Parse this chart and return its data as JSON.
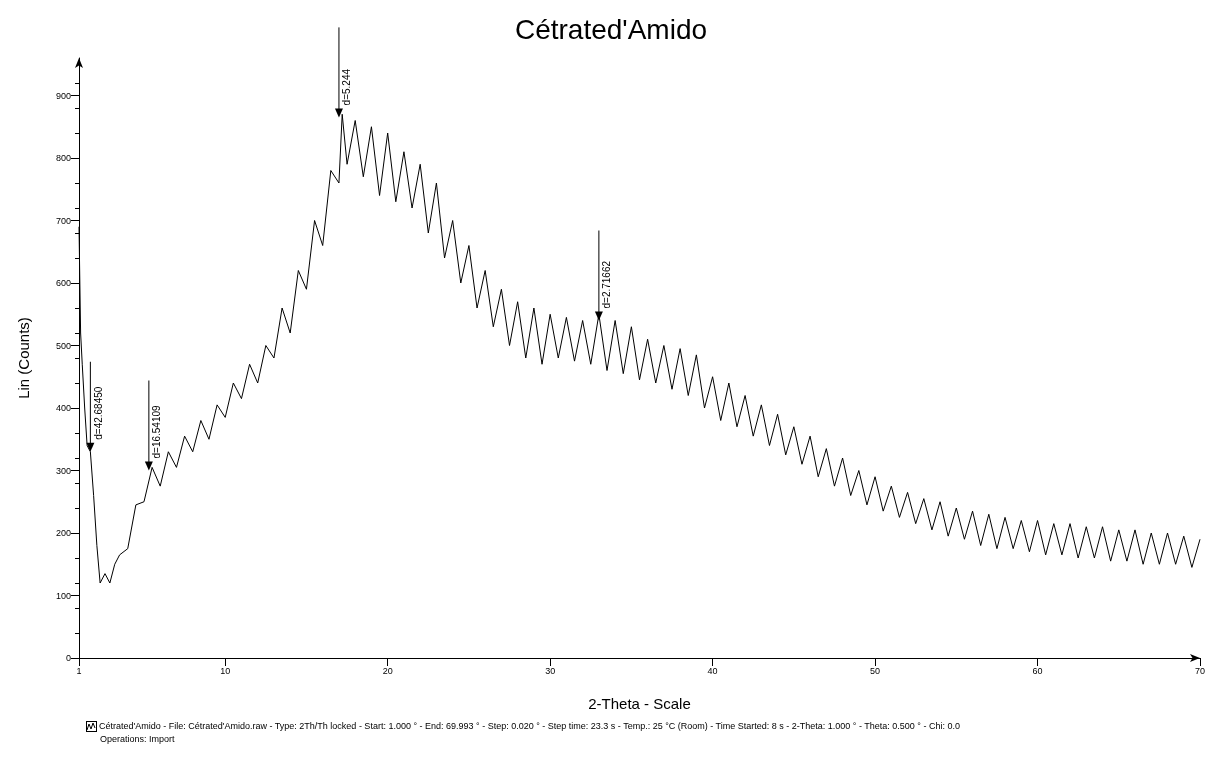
{
  "chart_data": {
    "type": "line",
    "title": "Cétrated'Amido",
    "xlabel": "2-Theta - Scale",
    "ylabel": "Lin (Counts)",
    "x": [
      1.0,
      1.1,
      1.2,
      1.35,
      1.5,
      1.7,
      1.9,
      2.1,
      2.3,
      2.6,
      2.9,
      3.2,
      3.5,
      4.0,
      4.5,
      5.0,
      5.5,
      6.0,
      6.5,
      7.0,
      7.5,
      8.0,
      8.5,
      9.0,
      9.5,
      10.0,
      10.5,
      11.0,
      11.5,
      12.0,
      12.5,
      13.0,
      13.5,
      14.0,
      14.5,
      15.0,
      15.5,
      16.0,
      16.5,
      17.0,
      17.2,
      17.5,
      18.0,
      18.5,
      19.0,
      19.5,
      20.0,
      20.5,
      21.0,
      21.5,
      22.0,
      22.5,
      23.0,
      23.5,
      24.0,
      24.5,
      25.0,
      25.5,
      26.0,
      26.5,
      27.0,
      27.5,
      28.0,
      28.5,
      29.0,
      29.5,
      30.0,
      30.5,
      31.0,
      31.5,
      32.0,
      32.5,
      33.0,
      33.5,
      34.0,
      34.5,
      35.0,
      35.5,
      36.0,
      36.5,
      37.0,
      37.5,
      38.0,
      38.5,
      39.0,
      39.5,
      40.0,
      40.5,
      41.0,
      41.5,
      42.0,
      42.5,
      43.0,
      43.5,
      44.0,
      44.5,
      45.0,
      45.5,
      46.0,
      46.5,
      47.0,
      47.5,
      48.0,
      48.5,
      49.0,
      49.5,
      50.0,
      50.5,
      51.0,
      51.5,
      52.0,
      52.5,
      53.0,
      53.5,
      54.0,
      54.5,
      55.0,
      55.5,
      56.0,
      56.5,
      57.0,
      57.5,
      58.0,
      58.5,
      59.0,
      59.5,
      60.0,
      60.5,
      61.0,
      61.5,
      62.0,
      62.5,
      63.0,
      63.5,
      64.0,
      64.5,
      65.0,
      65.5,
      66.0,
      66.5,
      67.0,
      67.5,
      68.0,
      68.5,
      69.0,
      69.5,
      70.0
    ],
    "series": [
      {
        "color": "#000000",
        "values": [
          690,
          520,
          470,
          400,
          340,
          330,
          260,
          180,
          120,
          135,
          120,
          150,
          165,
          175,
          245,
          250,
          305,
          275,
          330,
          305,
          355,
          330,
          380,
          350,
          405,
          385,
          440,
          415,
          470,
          440,
          500,
          480,
          560,
          520,
          620,
          590,
          700,
          660,
          780,
          760,
          870,
          790,
          860,
          770,
          850,
          740,
          840,
          730,
          810,
          720,
          790,
          680,
          760,
          640,
          700,
          600,
          660,
          560,
          620,
          530,
          590,
          500,
          570,
          480,
          560,
          470,
          550,
          480,
          545,
          475,
          540,
          470,
          550,
          460,
          540,
          455,
          530,
          445,
          510,
          440,
          500,
          430,
          495,
          420,
          485,
          400,
          450,
          380,
          440,
          370,
          420,
          355,
          405,
          340,
          390,
          325,
          370,
          310,
          355,
          290,
          335,
          275,
          320,
          260,
          300,
          245,
          290,
          235,
          275,
          225,
          265,
          215,
          255,
          205,
          250,
          195,
          240,
          190,
          235,
          180,
          230,
          175,
          225,
          175,
          220,
          170,
          220,
          165,
          215,
          165,
          215,
          160,
          210,
          160,
          210,
          155,
          205,
          155,
          205,
          150,
          200,
          150,
          200,
          150,
          195,
          145,
          190
        ]
      }
    ],
    "xlim": [
      1,
      70
    ],
    "xticks": [
      1,
      10,
      20,
      30,
      40,
      50,
      60,
      70
    ],
    "ylim": [
      0,
      960
    ],
    "yticks": [
      0,
      100,
      200,
      300,
      400,
      500,
      600,
      700,
      800,
      900
    ],
    "grid": false,
    "marker": "none",
    "line_style": "solid",
    "annotations": [
      {
        "text": "d=42.68450",
        "x": 1.7,
        "y": 330
      },
      {
        "text": "d=16.54109",
        "x": 5.3,
        "y": 300
      },
      {
        "text": "d=5.244",
        "x": 17,
        "y": 865
      },
      {
        "text": "d=2.71662",
        "x": 33,
        "y": 540
      },
      "Cétrated'Amido - File: Cétrated'Amido.raw - Type: 2Th/Th locked - Start: 1.000 ° - End: 69.993 ° - Step: 0.020 ° - Step time: 23.3 s - Temp.: 25 °C (Room) - Time Started: 8 s - 2-Theta: 1.000 ° - Theta: 0.500 ° - Chi: 0.0",
      "Operations: Import"
    ]
  }
}
